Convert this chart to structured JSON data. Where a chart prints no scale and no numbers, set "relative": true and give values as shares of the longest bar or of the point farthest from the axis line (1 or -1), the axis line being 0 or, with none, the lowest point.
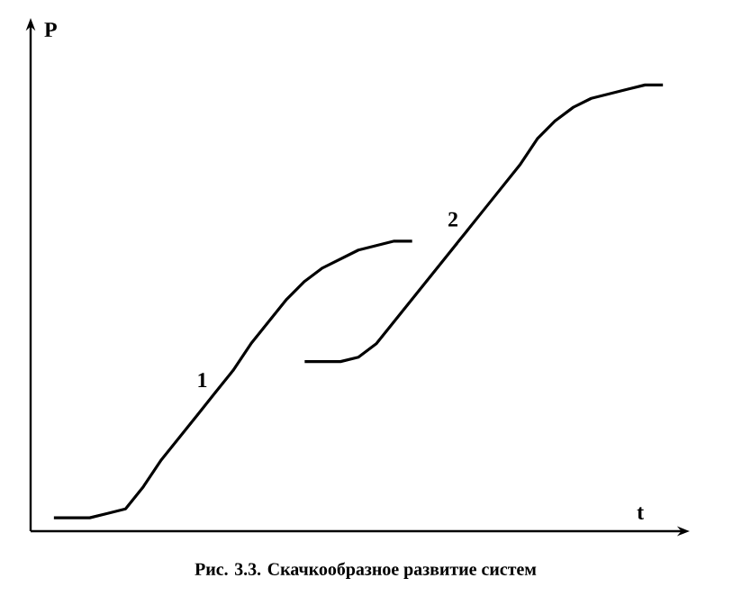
{
  "chart_data": {
    "type": "line",
    "relative": true,
    "xlabel": "t",
    "ylabel": "P",
    "annotations": [
      "Рис. 3.3. Скачкообразное развитие систем"
    ],
    "categories": [
      null,
      null,
      null,
      null,
      null,
      null,
      null,
      null,
      null,
      null,
      null,
      null,
      null,
      null,
      null,
      null,
      null,
      null,
      null,
      null,
      null,
      null,
      null,
      null,
      null,
      null,
      null,
      null,
      null,
      null,
      null,
      null,
      null,
      null,
      null,
      null
    ],
    "series": [
      {
        "name": "1",
        "color": "#000000",
        "values": [
          null,
          0.03,
          0.03,
          0.03,
          0.04,
          0.05,
          0.1,
          0.16,
          0.21,
          0.26,
          0.31,
          0.36,
          0.42,
          0.47,
          0.52,
          0.56,
          0.59,
          0.61,
          0.63,
          0.64,
          0.65,
          0.65,
          null,
          null,
          null,
          null,
          null,
          null,
          null,
          null,
          null,
          null,
          null,
          null,
          null,
          null
        ]
      },
      {
        "name": "2",
        "color": "#000000",
        "values": [
          null,
          null,
          null,
          null,
          null,
          null,
          null,
          null,
          null,
          null,
          null,
          null,
          null,
          null,
          null,
          0.38,
          0.38,
          0.38,
          0.39,
          0.42,
          0.47,
          0.52,
          0.57,
          0.62,
          0.67,
          0.72,
          0.77,
          0.82,
          0.88,
          0.92,
          0.95,
          0.97,
          0.98,
          0.99,
          1.0,
          1.0
        ]
      }
    ],
    "legend": false,
    "marker": "none",
    "line_style": "solid"
  }
}
